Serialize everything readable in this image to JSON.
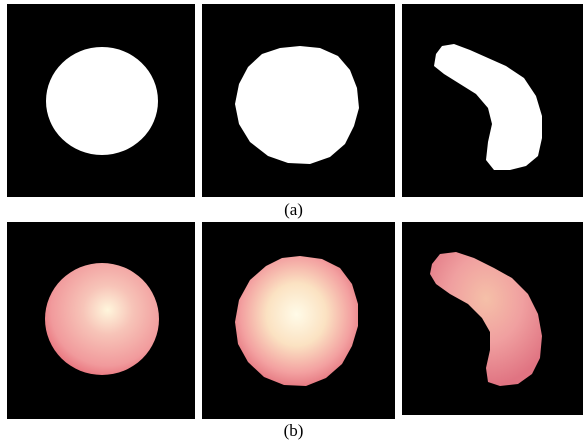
{
  "figure": {
    "caption_a": "(a)",
    "caption_b": "(b)"
  },
  "colors": {
    "background": "#000000",
    "mask": "#ffffff",
    "cell_edge": "#e8707a",
    "cell_mid": "#f4a8a6",
    "cell_core": "#fff6dc"
  }
}
